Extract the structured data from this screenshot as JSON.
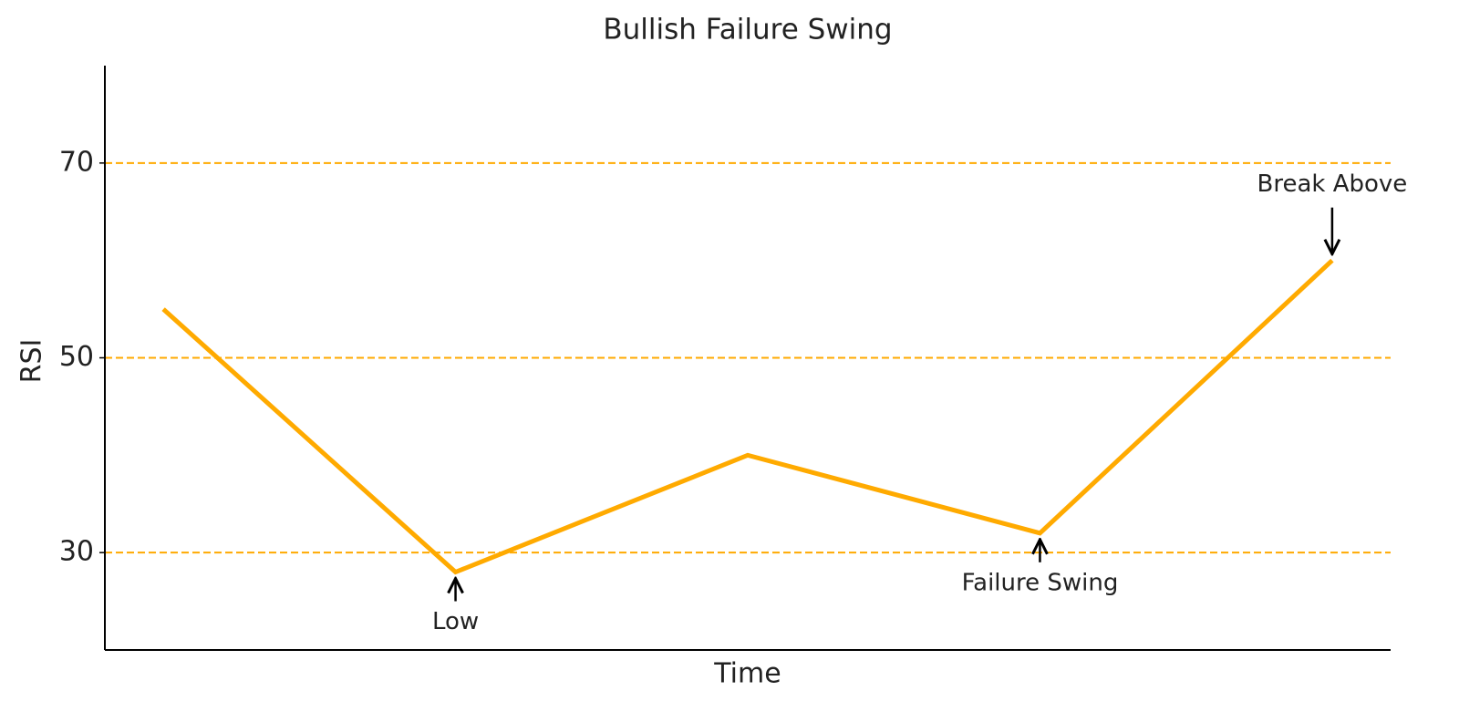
{
  "chart_data": {
    "type": "line",
    "title": "Bullish Failure Swing",
    "x_label": "Time",
    "y_label": "RSI",
    "x": [
      0,
      1,
      2,
      3,
      4
    ],
    "xlim": [
      -0.2,
      4.2
    ],
    "series": [
      {
        "name": "RSI",
        "color": "#ffaa00",
        "values": [
          55,
          28,
          40,
          32,
          60
        ]
      }
    ],
    "ylim": [
      20,
      80
    ],
    "yticks": [
      30,
      50,
      70
    ],
    "grid": true,
    "grid_color": "#ffaa00",
    "annotations": [
      {
        "text": "Low",
        "x": 1,
        "y": 28
      },
      {
        "text": "Failure Swing",
        "x": 3,
        "y": 32
      },
      {
        "text": "Break Above",
        "x": 4,
        "y": 60
      }
    ]
  }
}
